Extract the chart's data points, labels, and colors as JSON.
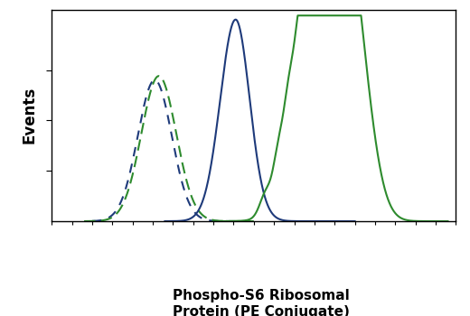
{
  "title_line1": "Phospho-S6 Ribosomal",
  "title_line2": "Protein (PE Conjugate)",
  "ylabel": "Events",
  "bg_color": "#ffffff",
  "line_color_blue": "#1e3a7a",
  "line_color_green": "#2e8b2e",
  "linewidth": 1.5,
  "xlim": [
    0.0,
    10.0
  ],
  "ylim": [
    0.0,
    1.05
  ]
}
